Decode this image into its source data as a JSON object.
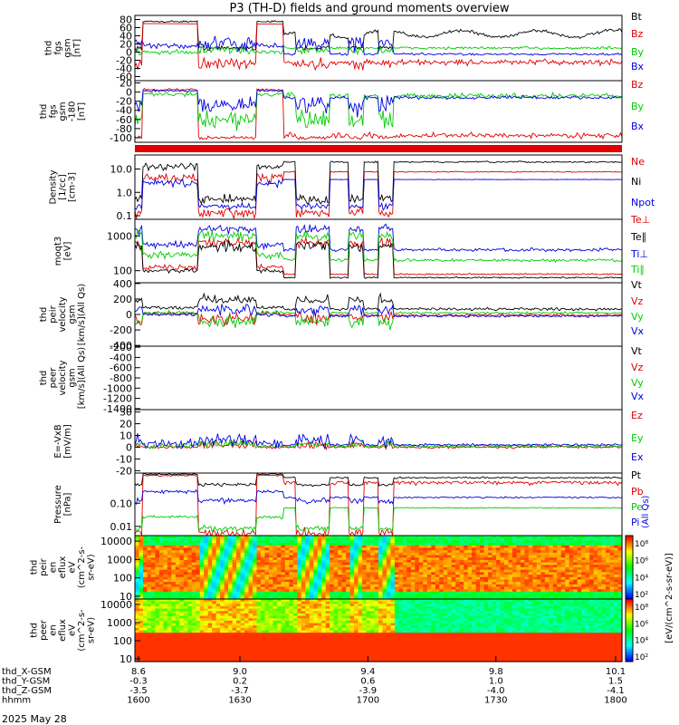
{
  "chart_data": {
    "type": "line",
    "title": "P3 (TH-D) fields and ground moments overview",
    "date": "2025 May 28",
    "panels": [
      {
        "id": "fgs_gsm",
        "ylabel": [
          "thd",
          "fgs",
          "gsm",
          "[nT]"
        ],
        "scale": "linear",
        "ylim": [
          -70,
          90
        ],
        "ticks": [
          80,
          60,
          40,
          20,
          0,
          -20,
          -40,
          -60
        ],
        "series": [
          {
            "name": "Bt",
            "color": "#000000"
          },
          {
            "name": "Bz",
            "color": "#e00000"
          },
          {
            "name": "By",
            "color": "#00cc00"
          },
          {
            "name": "Bx",
            "color": "#0000e0"
          }
        ]
      },
      {
        "id": "fgs_gsm_tilted",
        "ylabel": [
          "thd",
          "fgs",
          "gsm",
          "-180",
          "[nT]"
        ],
        "scale": "linear",
        "ylim": [
          -110,
          25
        ],
        "ticks": [
          20,
          0,
          -20,
          -40,
          -60,
          -80,
          -100
        ],
        "series": [
          {
            "name": "Bz",
            "color": "#e00000"
          },
          {
            "name": "By",
            "color": "#00cc00"
          },
          {
            "name": "Bx",
            "color": "#0000e0"
          }
        ]
      },
      {
        "id": "density",
        "ylabel": [
          "Density",
          "[1/cc]",
          "[cm-3]"
        ],
        "scale": "log",
        "ylim": [
          0.07,
          40
        ],
        "ticks": [
          "10.0",
          "1.0",
          "0.1"
        ],
        "series": [
          {
            "name": "Ne",
            "color": "#e00000"
          },
          {
            "name": "Ni",
            "color": "#000000"
          },
          {
            "name": "Npot",
            "color": "#0000e0"
          }
        ]
      },
      {
        "id": "temperature",
        "ylabel": [
          "moqt3",
          "[eV]"
        ],
        "scale": "log",
        "ylim": [
          45,
          3000
        ],
        "ticks": [
          "1000",
          "100"
        ],
        "series": [
          {
            "name": "Te⊥",
            "color": "#e00000"
          },
          {
            "name": "Te∥",
            "color": "#000000"
          },
          {
            "name": "Ti⊥",
            "color": "#0000e0"
          },
          {
            "name": "Ti∥",
            "color": "#00cc00"
          }
        ]
      },
      {
        "id": "peir_velocity",
        "ylabel": [
          "thd",
          "peir",
          "velocity",
          "gsm",
          "[km/s](All Qs)"
        ],
        "scale": "linear",
        "ylim": [
          -410,
          410
        ],
        "ticks": [
          400,
          200,
          0,
          -200,
          -400
        ],
        "series": [
          {
            "name": "Vt",
            "color": "#000000"
          },
          {
            "name": "Vz",
            "color": "#e00000"
          },
          {
            "name": "Vy",
            "color": "#00cc00"
          },
          {
            "name": "Vx",
            "color": "#0000e0"
          }
        ]
      },
      {
        "id": "peer_velocity",
        "ylabel": [
          "thd",
          "peer",
          "velocity",
          "gsm",
          "[km/s](All Qs)"
        ],
        "scale": "linear",
        "ylim": [
          -1420,
          -180
        ],
        "ticks": [
          -200,
          -400,
          -600,
          -800,
          -1000,
          -1200,
          -1400
        ],
        "series": [
          {
            "name": "Vt",
            "color": "#000000"
          },
          {
            "name": "Vz",
            "color": "#e00000"
          },
          {
            "name": "Vy",
            "color": "#00cc00"
          },
          {
            "name": "Vx",
            "color": "#0000e0"
          }
        ]
      },
      {
        "id": "efield",
        "ylabel": [
          "E=-VxB",
          "[mV/m]"
        ],
        "scale": "linear",
        "ylim": [
          -22,
          32
        ],
        "ticks": [
          30,
          20,
          10,
          0,
          -10,
          -20
        ],
        "series": [
          {
            "name": "Ez",
            "color": "#e00000"
          },
          {
            "name": "Ey",
            "color": "#00cc00"
          },
          {
            "name": "Ex",
            "color": "#0000e0"
          }
        ]
      },
      {
        "id": "pressure",
        "ylabel": [
          "Pressure",
          "[nPa]"
        ],
        "scale": "log",
        "ylim": [
          0.004,
          2
        ],
        "ticks": [
          "0.10",
          "0.01"
        ],
        "series": [
          {
            "name": "Pt",
            "color": "#000000"
          },
          {
            "name": "Pb",
            "color": "#e00000"
          },
          {
            "name": "Pe",
            "color": "#00cc00"
          },
          {
            "name": "Pi",
            "color": "#0000e0"
          },
          {
            "name": "(All Qs)",
            "color": "#0000e0"
          }
        ]
      },
      {
        "id": "peir_spec",
        "type": "heatmap",
        "ylabel": [
          "thd",
          "peir",
          "en",
          "eflux",
          "eV",
          "(cm^2-s-",
          "sr-eV)"
        ],
        "scale": "log",
        "ylim": [
          7,
          20000
        ],
        "ticks": [
          "10000",
          "1000",
          "100",
          "10"
        ]
      },
      {
        "id": "peer_spec",
        "type": "heatmap",
        "ylabel": [
          "thd",
          "peer",
          "en",
          "eflux",
          "eV",
          "(cm^2-s-",
          "sr-eV)"
        ],
        "scale": "log",
        "ylim": [
          7,
          20000
        ],
        "ticks": [
          "10000",
          "1000",
          "100",
          "10"
        ]
      }
    ],
    "colorbar": {
      "label": "[eV/(cm^2-s-sr-eV)]",
      "ticks": [
        "10⁸",
        "10⁶",
        "10⁴",
        "10²"
      ],
      "ticks_lower": [
        "10⁸",
        "10⁶",
        "10⁴",
        "10²"
      ]
    },
    "x_axis": {
      "row_labels": [
        "thd_X-GSM",
        "thd_Y-GSM",
        "thd_Z-GSM",
        "hhmm"
      ],
      "columns": [
        [
          "8.6",
          "-0.3",
          "-3.5",
          "1600"
        ],
        [
          "9.0",
          "0.2",
          "-3.7",
          "1630"
        ],
        [
          "9.4",
          "0.6",
          "-3.9",
          "1700"
        ],
        [
          "9.8",
          "1.0",
          "-4.0",
          "1730"
        ],
        [
          "10.1",
          "1.5",
          "-4.1",
          "1800"
        ]
      ]
    }
  }
}
